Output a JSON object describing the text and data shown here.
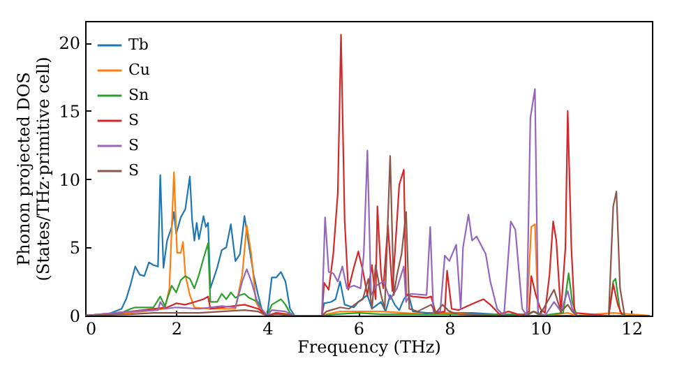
{
  "chart_data": {
    "type": "line",
    "xlabel": "Frequency (THz)",
    "ylabel": "Phonon projected DOS\n(States/THz·primitive cell)",
    "xlim": [
      0,
      12.45
    ],
    "ylim": [
      0,
      21.6
    ],
    "xticks": [
      0,
      2,
      4,
      6,
      8,
      10,
      12
    ],
    "yticks": [
      0,
      5,
      10,
      15,
      20
    ],
    "grid": false,
    "legend": "top left",
    "series": [
      {
        "name": "Tb",
        "color": "#1f77b4",
        "x": [
          0,
          0.5,
          0.8,
          0.9,
          1.0,
          1.1,
          1.2,
          1.3,
          1.4,
          1.5,
          1.6,
          1.65,
          1.72,
          1.8,
          1.9,
          1.95,
          2.0,
          2.1,
          2.2,
          2.3,
          2.35,
          2.4,
          2.45,
          2.5,
          2.6,
          2.65,
          2.7,
          2.75,
          2.9,
          3.0,
          3.1,
          3.2,
          3.3,
          3.4,
          3.5,
          3.6,
          3.7,
          3.8,
          3.9,
          4.0,
          4.1,
          4.2,
          4.3,
          4.4,
          4.5,
          4.6,
          5.2,
          5.25,
          5.4,
          5.5,
          5.6,
          5.7,
          5.9,
          6.0,
          6.2,
          6.3,
          6.5,
          6.6,
          6.7,
          6.8,
          6.9,
          7.0,
          7.1,
          7.2,
          7.5,
          8.0,
          8.5,
          9.0,
          9.2,
          12.4
        ],
        "values": [
          0,
          0.1,
          0.5,
          1.2,
          2.3,
          3.6,
          3.0,
          2.9,
          3.9,
          3.7,
          3.6,
          10.3,
          3.5,
          5.5,
          6.5,
          7.6,
          6.0,
          7.2,
          7.8,
          10.2,
          7.0,
          5.5,
          6.8,
          5.6,
          7.3,
          6.5,
          6.8,
          2.0,
          3.5,
          4.8,
          5.0,
          6.7,
          4.0,
          4.5,
          7.3,
          5.1,
          3.0,
          1.5,
          0.2,
          0,
          2.8,
          2.8,
          3.2,
          2.5,
          0.5,
          0,
          0,
          0.9,
          1.0,
          1.2,
          2.5,
          0.8,
          0.6,
          1.0,
          1.5,
          0.5,
          1.0,
          0.3,
          1.5,
          0.8,
          0.4,
          1.2,
          1.6,
          0.3,
          0.2,
          0.2,
          0.2,
          0.1,
          0,
          0
        ]
      },
      {
        "name": "Cu",
        "color": "#ff7f0e",
        "x": [
          0,
          1.0,
          1.5,
          1.75,
          1.85,
          1.95,
          2.02,
          2.1,
          2.15,
          2.2,
          2.3,
          2.4,
          2.7,
          3.0,
          3.3,
          3.45,
          3.55,
          3.65,
          3.75,
          3.9,
          4.0,
          4.2,
          4.5,
          4.6,
          5.2,
          5.3,
          5.6,
          6.0,
          6.5,
          7.0,
          7.5,
          8.0,
          8.5,
          9.0,
          9.7,
          9.8,
          9.88,
          9.95,
          10.1,
          10.6,
          10.8,
          11.6,
          12.4
        ],
        "values": [
          0,
          0.2,
          0.4,
          0.5,
          2.0,
          10.5,
          4.6,
          4.6,
          5.4,
          3.0,
          1.5,
          0.6,
          0.5,
          0.5,
          0.5,
          3.0,
          6.6,
          4.5,
          1.0,
          0.1,
          0,
          0.2,
          0.1,
          0,
          0,
          0.1,
          0.3,
          0.3,
          0.3,
          0.2,
          0.1,
          0.2,
          0.1,
          0,
          0,
          6.5,
          6.7,
          0.2,
          0,
          0.2,
          0,
          0.2,
          0
        ]
      },
      {
        "name": "Sn",
        "color": "#2ca02c",
        "x": [
          0,
          0.8,
          1.0,
          1.1,
          1.5,
          1.65,
          1.75,
          1.9,
          2.0,
          2.1,
          2.2,
          2.3,
          2.4,
          2.5,
          2.6,
          2.7,
          2.75,
          2.9,
          3.0,
          3.1,
          3.2,
          3.3,
          3.4,
          3.5,
          3.6,
          3.8,
          3.9,
          4.0,
          4.1,
          4.3,
          4.4,
          4.5,
          4.6,
          5.2,
          5.5,
          6.0,
          6.5,
          7.5,
          9.7,
          9.85,
          10.0,
          10.5,
          10.62,
          10.7,
          10.8,
          11.5,
          11.6,
          11.65,
          11.75,
          11.85,
          12.4
        ],
        "values": [
          0,
          0.2,
          0.5,
          0.6,
          0.6,
          1.4,
          0.7,
          2.2,
          1.7,
          2.6,
          2.9,
          2.7,
          2.0,
          3.0,
          4.2,
          5.3,
          1.0,
          1.0,
          1.6,
          1.2,
          1.7,
          1.3,
          1.5,
          1.6,
          1.3,
          1.0,
          0.3,
          0,
          0.8,
          1.2,
          0.8,
          0.2,
          0,
          0,
          0.1,
          0.2,
          0.1,
          0.1,
          0.1,
          0.3,
          0,
          0.2,
          3.1,
          1.0,
          0,
          0,
          2.5,
          2.7,
          0.3,
          0,
          0
        ]
      },
      {
        "name": "S",
        "color": "#d62728",
        "x": [
          0,
          1.0,
          1.5,
          1.8,
          2.0,
          2.2,
          2.4,
          2.6,
          2.7,
          2.75,
          3.0,
          3.5,
          3.8,
          4.0,
          4.2,
          4.6,
          5.2,
          5.25,
          5.35,
          5.45,
          5.55,
          5.62,
          5.7,
          5.78,
          5.9,
          6.0,
          6.1,
          6.2,
          6.3,
          6.38,
          6.42,
          6.5,
          6.55,
          6.65,
          6.75,
          6.9,
          7.0,
          7.05,
          7.2,
          7.5,
          7.6,
          7.7,
          7.9,
          7.95,
          8.05,
          8.2,
          8.4,
          8.6,
          8.75,
          8.9,
          9.1,
          9.3,
          9.5,
          9.6,
          9.75,
          9.8,
          9.9,
          10.0,
          10.1,
          10.2,
          10.28,
          10.35,
          10.45,
          10.55,
          10.6,
          10.68,
          10.75,
          11.5,
          11.6,
          11.7,
          11.8,
          12.4
        ],
        "values": [
          0,
          0.3,
          0.5,
          0.6,
          0.9,
          0.8,
          1.0,
          1.2,
          1.4,
          0.5,
          0.6,
          0.8,
          0.5,
          0,
          0.2,
          0,
          0,
          2.4,
          1.9,
          4.5,
          9.0,
          20.6,
          7.0,
          1.9,
          3.5,
          4.7,
          3.3,
          1.5,
          3.7,
          1.2,
          8.0,
          3.0,
          2.0,
          6.6,
          1.8,
          9.6,
          10.7,
          1.5,
          1.4,
          1.3,
          1.4,
          0.2,
          0.3,
          3.3,
          0.5,
          0.4,
          0.7,
          1.0,
          1.2,
          0.8,
          0.1,
          0.3,
          0.1,
          0,
          0.3,
          2.9,
          1.5,
          0.5,
          0.2,
          3.0,
          6.9,
          5.5,
          0.2,
          5.0,
          15.0,
          5.0,
          0.2,
          0,
          2.3,
          0.8,
          0,
          0
        ]
      },
      {
        "name": "S",
        "color": "#9467bd",
        "x": [
          0,
          1.0,
          1.6,
          1.65,
          1.75,
          2.0,
          2.5,
          3.0,
          3.3,
          3.45,
          3.55,
          3.65,
          3.8,
          4.0,
          4.1,
          4.4,
          4.6,
          5.2,
          5.27,
          5.35,
          5.45,
          5.55,
          5.65,
          5.75,
          5.9,
          6.05,
          6.12,
          6.2,
          6.28,
          6.4,
          6.55,
          6.7,
          6.85,
          7.0,
          7.05,
          7.15,
          7.5,
          7.58,
          7.65,
          7.8,
          7.9,
          8.0,
          8.15,
          8.25,
          8.3,
          8.42,
          8.5,
          8.6,
          8.8,
          8.9,
          9.05,
          9.2,
          9.35,
          9.45,
          9.6,
          9.7,
          9.78,
          9.88,
          9.95,
          10.1,
          10.3,
          10.45,
          10.6,
          10.7,
          10.8,
          12.4
        ],
        "values": [
          0,
          0.3,
          0.4,
          1.0,
          0.5,
          0.6,
          0.5,
          0.7,
          0.6,
          2.5,
          3.4,
          2.5,
          0.8,
          0,
          0.4,
          0.3,
          0,
          0,
          7.2,
          3.2,
          3.1,
          2.5,
          3.6,
          2.0,
          2.2,
          2.0,
          4.5,
          12.1,
          1.5,
          2.2,
          2.5,
          1.2,
          2.0,
          3.6,
          1.0,
          1.6,
          1.5,
          6.5,
          0.3,
          0.3,
          4.4,
          4.0,
          5.2,
          0.5,
          5.0,
          7.4,
          5.5,
          5.8,
          4.5,
          2.5,
          0.5,
          0,
          6.9,
          6.3,
          0.5,
          0,
          14.5,
          16.6,
          0.2,
          0,
          1.0,
          0.3,
          1.8,
          0.5,
          0,
          0
        ]
      },
      {
        "name": "S",
        "color": "#8c564b",
        "x": [
          0,
          1.0,
          1.5,
          2.0,
          2.5,
          3.0,
          3.5,
          3.8,
          4.0,
          4.2,
          4.6,
          5.2,
          5.3,
          5.6,
          5.8,
          6.0,
          6.1,
          6.22,
          6.3,
          6.38,
          6.5,
          6.58,
          6.7,
          6.78,
          6.85,
          6.95,
          7.05,
          7.12,
          7.3,
          7.6,
          7.7,
          7.85,
          8.0,
          8.2,
          9.0,
          9.7,
          9.85,
          10.0,
          10.3,
          10.45,
          10.6,
          10.7,
          10.8,
          11.5,
          11.6,
          11.67,
          11.75,
          11.85,
          12.4
        ],
        "values": [
          0,
          0.1,
          0.2,
          0.2,
          0.2,
          0.3,
          0.4,
          0.3,
          0,
          0.1,
          0,
          0,
          0.3,
          0.6,
          0.5,
          1.0,
          1.2,
          2.7,
          0.5,
          3.7,
          1.5,
          0.5,
          11.7,
          1.5,
          3.0,
          4.5,
          7.6,
          0.5,
          0.3,
          0.8,
          0.2,
          0.8,
          0.3,
          0.1,
          0,
          0,
          0.3,
          0.1,
          1.9,
          0.3,
          0.8,
          0.3,
          0,
          0,
          8.0,
          9.1,
          2.0,
          0,
          0
        ]
      }
    ]
  }
}
